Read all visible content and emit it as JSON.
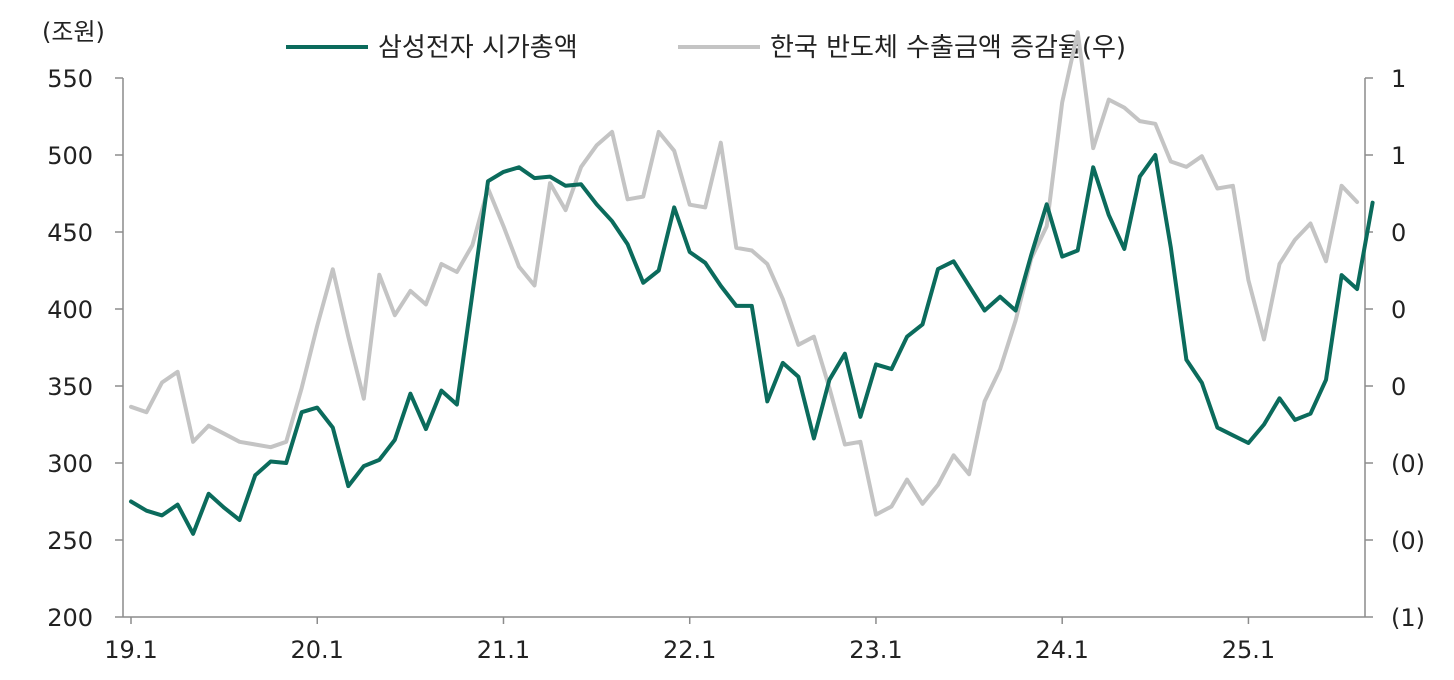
{
  "chart_data": {
    "type": "line",
    "title": "",
    "ylabel": "(조원)",
    "y2label": "",
    "ylim": [
      200,
      550
    ],
    "y2lim": [
      -1,
      1
    ],
    "yticks": [
      "550",
      "500",
      "450",
      "400",
      "350",
      "300",
      "250",
      "200"
    ],
    "y2ticks": [
      "1",
      "1",
      "0",
      "0",
      "0",
      "(0)",
      "(0)",
      "(1)"
    ],
    "xticks": [
      "19.1",
      "20.1",
      "21.1",
      "22.1",
      "23.1",
      "24.1",
      "25.1"
    ],
    "legend_position": "top-center",
    "colors": {
      "samsung": "#0b6b5c",
      "semis": "#c4c4c4",
      "axis": "#8c8c8c"
    },
    "series": [
      {
        "name": "삼성전자 시가총액",
        "axis": "left",
        "x_start": "2019-01",
        "values": [
          275,
          269,
          266,
          273,
          254,
          280,
          271,
          263,
          292,
          301,
          300,
          333,
          336,
          323,
          285,
          298,
          302,
          315,
          345,
          322,
          347,
          338,
          410,
          483,
          489,
          492,
          485,
          486,
          480,
          481,
          468,
          457,
          442,
          417,
          425,
          466,
          437,
          430,
          415,
          402,
          402,
          340,
          365,
          356,
          316,
          354,
          371,
          330,
          364,
          361,
          382,
          390,
          426,
          431,
          415,
          399,
          408,
          399,
          435,
          468,
          434,
          438,
          492,
          461,
          439,
          486,
          500,
          440,
          367,
          352,
          323,
          318,
          313,
          325,
          342,
          328,
          332,
          354,
          422,
          413,
          469
        ]
      },
      {
        "name": "한국 반도체 수출금액 증감율(우)",
        "axis": "right",
        "x_start": "2019-01",
        "values": [
          -0.22,
          -0.24,
          -0.13,
          -0.09,
          -0.35,
          -0.29,
          -0.32,
          -0.35,
          -0.36,
          -0.37,
          -0.35,
          -0.15,
          0.08,
          0.29,
          0.04,
          -0.19,
          0.27,
          0.12,
          0.21,
          0.16,
          0.31,
          0.28,
          0.38,
          0.59,
          0.45,
          0.3,
          0.23,
          0.61,
          0.51,
          0.67,
          0.75,
          0.8,
          0.55,
          0.56,
          0.8,
          0.73,
          0.53,
          0.52,
          0.76,
          0.37,
          0.36,
          0.31,
          0.18,
          0.01,
          0.04,
          -0.15,
          -0.36,
          -0.35,
          -0.62,
          -0.59,
          -0.49,
          -0.58,
          -0.51,
          -0.4,
          -0.47,
          -0.2,
          -0.08,
          0.1,
          0.33,
          0.45,
          0.91,
          1.17,
          0.74,
          0.92,
          0.89,
          0.84,
          0.83,
          0.69,
          0.67,
          0.71,
          0.59,
          0.6,
          0.25,
          0.03,
          0.31,
          0.4,
          0.46,
          0.32,
          0.6,
          0.54
        ]
      }
    ]
  }
}
